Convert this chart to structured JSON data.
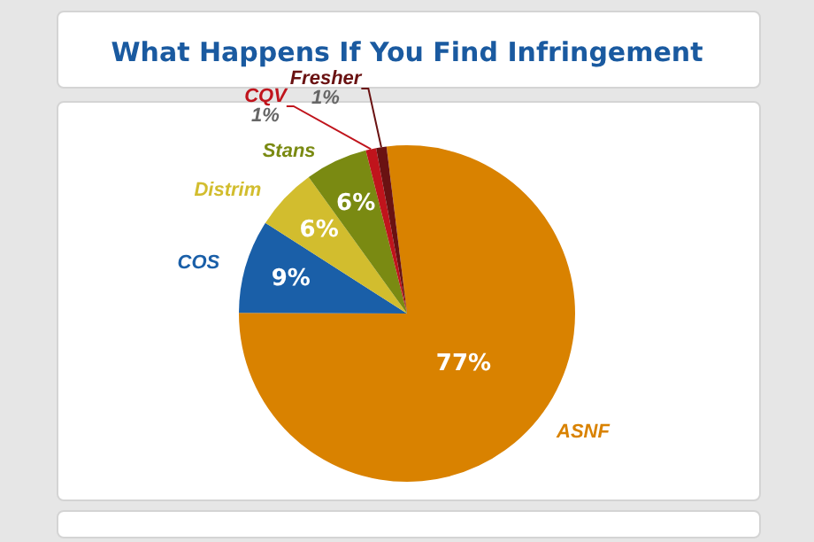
{
  "chart_data": {
    "type": "pie",
    "title": "What Happens If You Find Infringement",
    "categories": [
      "ASNF",
      "COS",
      "Distrim",
      "Stans",
      "CQV",
      "Fresher"
    ],
    "values": [
      77,
      9,
      6,
      6,
      1,
      1
    ],
    "value_labels": [
      "77%",
      "9%",
      "6%",
      "6%",
      "1%",
      "1%"
    ],
    "colors": [
      "#d98200",
      "#1a5fa8",
      "#d2bd2e",
      "#7a8a12",
      "#c0141c",
      "#6a1212"
    ],
    "legend": false
  }
}
